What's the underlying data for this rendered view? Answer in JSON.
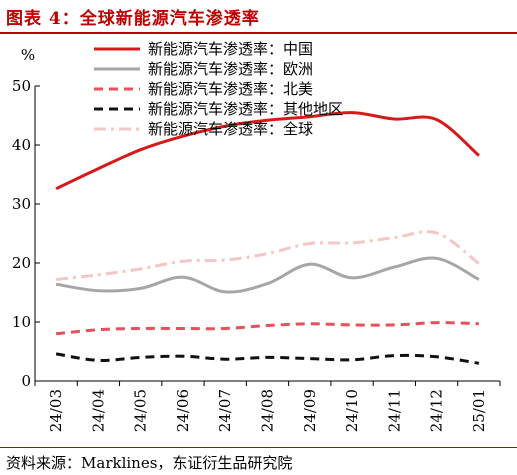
{
  "header": {
    "title": "图表 4：全球新能源汽车渗透率"
  },
  "footer": {
    "source_label": "资料来源：",
    "source_value": "Marklines，东证衍生品研究院"
  },
  "colors": {
    "title": "#c00000",
    "axis": "#000000"
  },
  "chart_data": {
    "type": "line",
    "y_unit": "%",
    "ylim": [
      0,
      50
    ],
    "yticks": [
      0,
      10,
      20,
      30,
      40,
      50
    ],
    "grid": false,
    "legend_position": "top-right",
    "x_tick_labels": [
      "24/03",
      "24/04",
      "24/05",
      "24/06",
      "24/07",
      "24/08",
      "24/09",
      "24/10",
      "24/11",
      "24/12",
      "25/01"
    ],
    "x": [
      "24/03",
      "24/04",
      "24/05",
      "24/06",
      "24/07",
      "24/08",
      "24/09",
      "24/10",
      "24/11",
      "24/12",
      "25/01"
    ],
    "series": [
      {
        "name": "新能源汽车渗透率：中国",
        "color": "#d7191c",
        "dash": "solid",
        "values": [
          32.6,
          36.0,
          39.2,
          41.5,
          43.2,
          44.2,
          44.8,
          45.5,
          44.4,
          44.3,
          38.2
        ]
      },
      {
        "name": "新能源汽车渗透率：欧洲",
        "color": "#a6a6a6",
        "dash": "solid",
        "values": [
          16.4,
          15.3,
          15.7,
          17.6,
          15.1,
          16.5,
          19.8,
          17.5,
          19.3,
          20.8,
          17.2
        ]
      },
      {
        "name": "新能源汽车渗透率：北美",
        "color": "#e8505b",
        "dash": "dash",
        "values": [
          8.0,
          8.7,
          8.9,
          8.9,
          8.9,
          9.4,
          9.7,
          9.5,
          9.5,
          9.9,
          9.7
        ]
      },
      {
        "name": "新能源汽车渗透率：其他地区",
        "color": "#111111",
        "dash": "dash",
        "values": [
          4.6,
          3.5,
          4.0,
          4.2,
          3.7,
          4.0,
          3.8,
          3.6,
          4.3,
          4.1,
          3.0
        ]
      },
      {
        "name": "新能源汽车渗透率：全球",
        "color": "#f4c7c7",
        "dash": "dashdot",
        "values": [
          17.2,
          18.0,
          19.0,
          20.3,
          20.5,
          21.6,
          23.3,
          23.4,
          24.3,
          25.1,
          19.9
        ]
      }
    ]
  }
}
